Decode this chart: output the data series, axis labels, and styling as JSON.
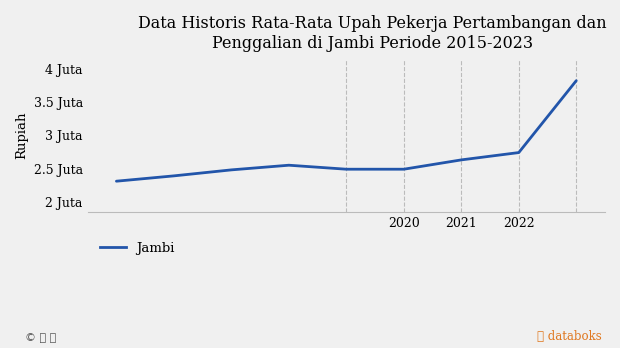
{
  "title": "Data Historis Rata-Rata Upah Pekerja Pertambangan dan\nPenggalian di Jambi Periode 2015-2023",
  "ylabel": "Rupiah",
  "line_color": "#2255aa",
  "background_color": "#f0f0f0",
  "x_values": [
    2015,
    2016,
    2017,
    2018,
    2019,
    2020,
    2021,
    2022,
    2023
  ],
  "y_values": [
    2310000,
    2390000,
    2480000,
    2550000,
    2490000,
    2490000,
    2630000,
    2740000,
    3820000
  ],
  "yticks": [
    2000000,
    2500000,
    3000000,
    3500000,
    4000000
  ],
  "ytick_labels": [
    "2 Juta",
    "2.5 Juta",
    "3 Juta",
    "3.5 Juta",
    "4 Juta"
  ],
  "xtick_positions": [
    2020,
    2021,
    2022
  ],
  "ylim": [
    1850000,
    4150000
  ],
  "xlim": [
    2014.5,
    2023.5
  ],
  "grid_x_positions": [
    2019,
    2020,
    2021,
    2022,
    2023
  ],
  "legend_label": "Jambi",
  "title_fontsize": 11.5,
  "axis_fontsize": 9.5,
  "tick_fontsize": 9,
  "legend_fontsize": 9.5,
  "databoks_color": "#e07820",
  "copyright_color": "#555555"
}
